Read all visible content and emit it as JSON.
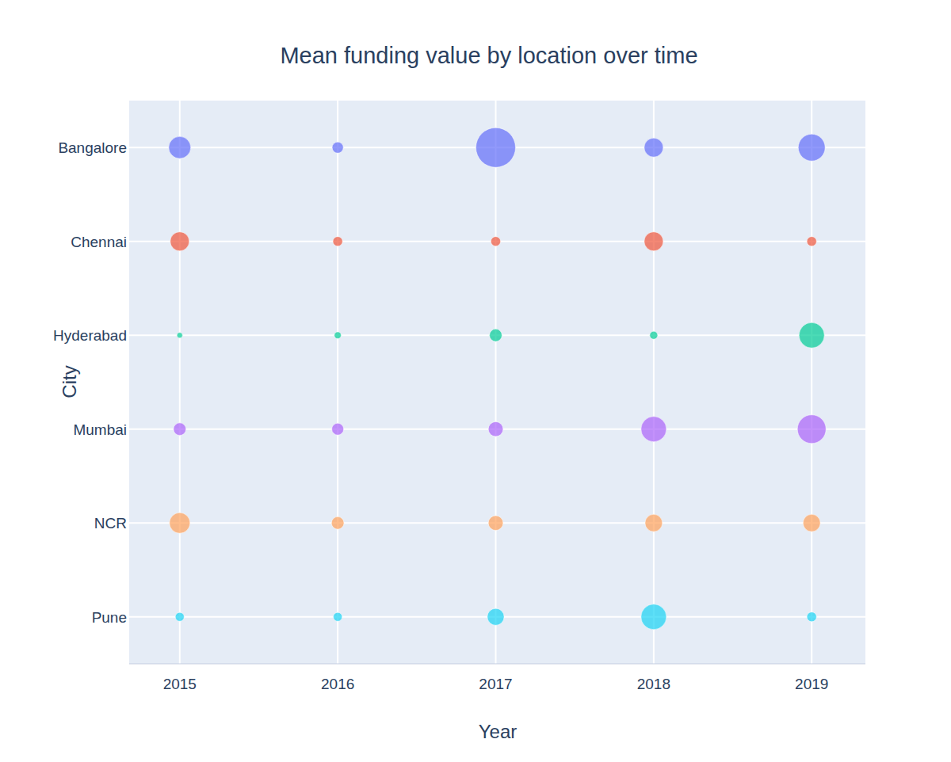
{
  "chart_data": {
    "type": "scatter",
    "title": "Mean funding value by location over time",
    "x_label": "Year",
    "y_label": "City",
    "x": [
      2015,
      2016,
      2017,
      2018,
      2019
    ],
    "xlim": [
      2014.68,
      2019.34
    ],
    "xticks": [
      2015,
      2016,
      2017,
      2018,
      2019
    ],
    "categories": [
      "Bangalore",
      "Chennai",
      "Hyderabad",
      "Mumbai",
      "NCR",
      "Pune"
    ],
    "grid": true,
    "marker": "circle",
    "series": [
      {
        "name": "Bangalore",
        "color": "#636efa",
        "size": [
          31,
          8,
          100,
          23,
          46
        ]
      },
      {
        "name": "Chennai",
        "color": "#ef553b",
        "size": [
          23,
          6,
          6,
          23,
          6
        ]
      },
      {
        "name": "Hyderabad",
        "color": "#00cc96",
        "size": [
          2,
          3,
          10,
          4,
          41
        ]
      },
      {
        "name": "Mumbai",
        "color": "#ab63fa",
        "size": [
          10,
          9,
          14,
          41,
          52
        ]
      },
      {
        "name": "NCR",
        "color": "#ffa15a",
        "size": [
          27,
          10,
          14,
          19,
          19
        ]
      },
      {
        "name": "Pune",
        "color": "#19d3f3",
        "size": [
          5,
          5,
          18,
          41,
          6
        ]
      }
    ]
  }
}
